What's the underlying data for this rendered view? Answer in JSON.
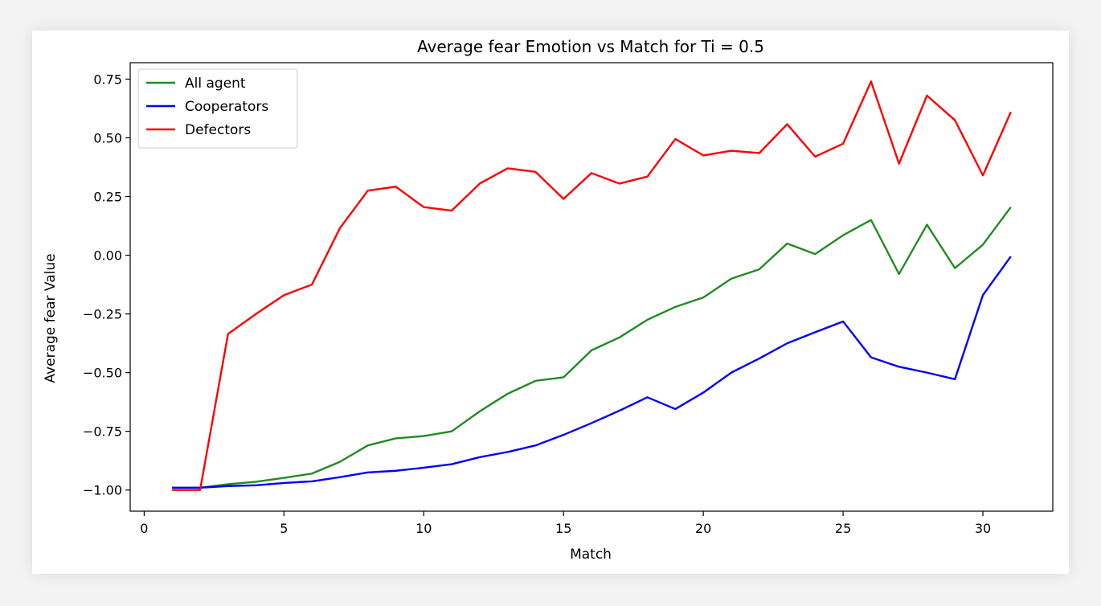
{
  "chart_data": {
    "type": "line",
    "title": "Average fear Emotion vs Match for Ti = 0.5",
    "xlabel": "Match",
    "ylabel": "Average fear Value",
    "xlim": [
      -0.5,
      32.5
    ],
    "ylim": [
      -1.09,
      0.82
    ],
    "xticks": [
      0,
      5,
      10,
      15,
      20,
      25,
      30
    ],
    "xtick_labels": [
      "0",
      "5",
      "10",
      "15",
      "20",
      "25",
      "30"
    ],
    "yticks": [
      -1.0,
      -0.75,
      -0.5,
      -0.25,
      0.0,
      0.25,
      0.5,
      0.75
    ],
    "ytick_labels": [
      "−1.00",
      "−0.75",
      "−0.50",
      "−0.25",
      "0.00",
      "0.25",
      "0.50",
      "0.75"
    ],
    "grid": false,
    "legend_position": "top-left",
    "x": [
      1,
      2,
      3,
      4,
      5,
      6,
      7,
      8,
      9,
      10,
      11,
      12,
      13,
      14,
      15,
      16,
      17,
      18,
      19,
      20,
      21,
      22,
      23,
      24,
      25,
      26,
      27,
      28,
      29,
      30,
      31
    ],
    "series": [
      {
        "name": "All agent",
        "color": "#228b22",
        "values": [
          -0.99,
          -0.99,
          -0.975,
          -0.965,
          -0.948,
          -0.93,
          -0.88,
          -0.81,
          -0.78,
          -0.77,
          -0.75,
          -0.665,
          -0.59,
          -0.535,
          -0.52,
          -0.405,
          -0.35,
          -0.275,
          -0.22,
          -0.18,
          -0.1,
          -0.06,
          0.05,
          0.005,
          0.085,
          0.15,
          -0.08,
          0.13,
          -0.055,
          0.045,
          0.205
        ]
      },
      {
        "name": "Cooperators",
        "color": "#0000ff",
        "values": [
          -0.99,
          -0.99,
          -0.983,
          -0.98,
          -0.97,
          -0.963,
          -0.945,
          -0.925,
          -0.918,
          -0.905,
          -0.89,
          -0.86,
          -0.838,
          -0.81,
          -0.765,
          -0.715,
          -0.662,
          -0.605,
          -0.655,
          -0.585,
          -0.5,
          -0.44,
          -0.375,
          -0.328,
          -0.282,
          -0.435,
          -0.475,
          -0.5,
          -0.528,
          -0.17,
          -0.005
        ]
      },
      {
        "name": "Defectors",
        "color": "#ff0000",
        "values": [
          -1.0,
          -1.0,
          -0.335,
          -0.25,
          -0.17,
          -0.125,
          0.115,
          0.275,
          0.292,
          0.205,
          0.19,
          0.305,
          0.37,
          0.355,
          0.24,
          0.35,
          0.305,
          0.335,
          0.495,
          0.425,
          0.445,
          0.435,
          0.558,
          0.42,
          0.475,
          0.74,
          0.39,
          0.68,
          0.575,
          0.34,
          0.61
        ]
      }
    ]
  }
}
